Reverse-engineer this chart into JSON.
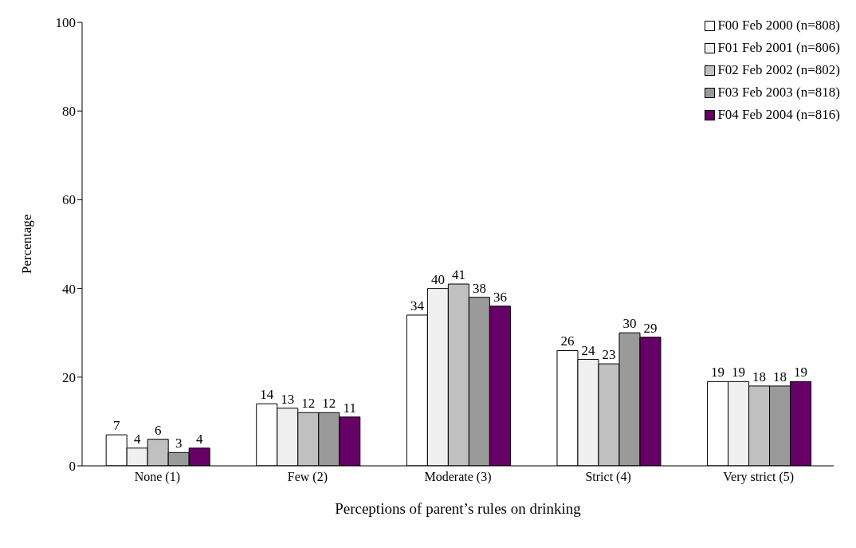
{
  "chart_data": {
    "type": "bar",
    "xlabel": "Perceptions of parent’s rules on drinking",
    "ylabel": "Percentage",
    "categories": [
      "None (1)",
      "Few (2)",
      "Moderate (3)",
      "Strict (4)",
      "Very strict (5)"
    ],
    "series": [
      {
        "name": "F00 Feb 2000 (n=808)",
        "color": "#ffffff",
        "values": [
          7,
          14,
          34,
          26,
          19
        ]
      },
      {
        "name": "F01 Feb 2001 (n=806)",
        "color": "#f0f0f0",
        "values": [
          4,
          13,
          40,
          24,
          19
        ]
      },
      {
        "name": "F02 Feb 2002 (n=802)",
        "color": "#c0c0c0",
        "values": [
          6,
          12,
          41,
          23,
          18
        ]
      },
      {
        "name": "F03 Feb 2003 (n=818)",
        "color": "#9a9a9a",
        "values": [
          3,
          12,
          38,
          30,
          18
        ]
      },
      {
        "name": "F04 Feb 2004 (n=816)",
        "color": "#660066",
        "values": [
          4,
          11,
          36,
          29,
          19
        ]
      }
    ],
    "ylim": [
      0,
      100
    ],
    "yticks": [
      0,
      20,
      40,
      60,
      80,
      100
    ],
    "grid": false,
    "legend": "top right",
    "data_labels": true
  }
}
